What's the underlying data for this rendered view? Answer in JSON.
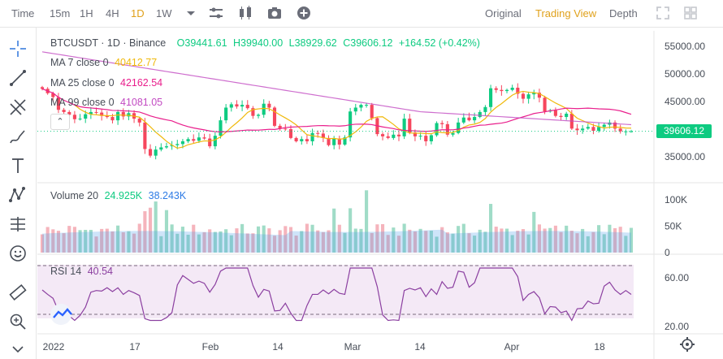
{
  "toolbar": {
    "intervals": [
      "Time",
      "15m",
      "1H",
      "4H",
      "1D",
      "1W"
    ],
    "active_interval": "1D",
    "views": [
      "Original",
      "Trading View",
      "Depth"
    ],
    "active_view": "Trading View",
    "colors": {
      "active": "#e0a11b",
      "text": "#6a6d78"
    }
  },
  "left_tools": [
    "crosshair-icon",
    "trendline-icon",
    "fib-icon",
    "brush-icon",
    "text-icon",
    "pattern-icon",
    "measure-icon",
    "emoji-icon",
    "ruler-icon",
    "zoom-in-icon",
    "magnet-icon"
  ],
  "legend": {
    "symbol": "BTCUSDT · 1D · Binance",
    "open": "O39441.61",
    "high": "H39940.00",
    "low": "L38929.62",
    "close": "C39606.12",
    "change": "+164.52 (+0.42%)",
    "ma7_label": "MA 7 close 0",
    "ma7_value": "40412.77",
    "ma25_label": "MA 25 close 0",
    "ma25_value": "42162.54",
    "ma99_label": "MA 99 close 0",
    "ma99_value": "41081.05",
    "volume_label": "Volume 20",
    "volume_value": "24.925K",
    "volume_ma": "38.243K",
    "rsi_label": "RSI 14",
    "rsi_value": "40.54"
  },
  "last_price": "39606.12",
  "colors": {
    "up": "#0ecb81",
    "down": "#f6465d",
    "ma7": "#f0b90b",
    "ma25": "#e91e8c",
    "ma99": "#c24ac2",
    "rsi": "#8b3fa0",
    "vol_up": "#8fd6bd",
    "vol_down": "#f3a7b0"
  },
  "chart_data": {
    "type": "candlestick",
    "price_axis": {
      "ticks": [
        "55000.00",
        "50000.00",
        "45000.00",
        "40000.00",
        "35000.00"
      ],
      "values": [
        55000,
        50000,
        45000,
        40000,
        35000
      ]
    },
    "volume_axis": {
      "ticks": [
        "100K",
        "50K",
        "0"
      ],
      "values": [
        100000,
        50000,
        0
      ]
    },
    "rsi_axis": {
      "ticks": [
        "60.00",
        "20.00"
      ],
      "values": [
        60,
        20
      ]
    },
    "x_ticks": [
      "2022",
      "17",
      "Feb",
      "14",
      "Mar",
      "14",
      "Apr",
      "18"
    ],
    "closes": [
      47300,
      46500,
      45800,
      43500,
      43100,
      42600,
      41800,
      41900,
      42700,
      43100,
      43000,
      42400,
      42200,
      41600,
      43100,
      42300,
      42900,
      41900,
      41200,
      36400,
      35200,
      36300,
      36700,
      36900,
      37100,
      37300,
      37800,
      38200,
      37900,
      38500,
      38300,
      36900,
      38800,
      41600,
      43900,
      44500,
      44100,
      44400,
      43800,
      42400,
      42600,
      44600,
      43900,
      40600,
      40100,
      40000,
      38400,
      37800,
      38200,
      37800,
      39300,
      39200,
      38400,
      37100,
      38300,
      37200,
      38500,
      43200,
      43900,
      44400,
      44400,
      42000,
      39100,
      38700,
      38400,
      39000,
      38700,
      41900,
      39400,
      38700,
      38800,
      37800,
      38900,
      41100,
      40900,
      39000,
      39300,
      41200,
      42100,
      41600,
      42200,
      43100,
      44000,
      47400,
      47100,
      46900,
      47100,
      47500,
      46400,
      45500,
      46300,
      46600,
      45700,
      43200,
      43400,
      42400,
      42200,
      42800,
      40100,
      39800,
      40100,
      40400,
      39700,
      40400,
      40800,
      41200,
      40100,
      39600,
      39600,
      39600
    ],
    "rsi_range": [
      20,
      80
    ]
  }
}
